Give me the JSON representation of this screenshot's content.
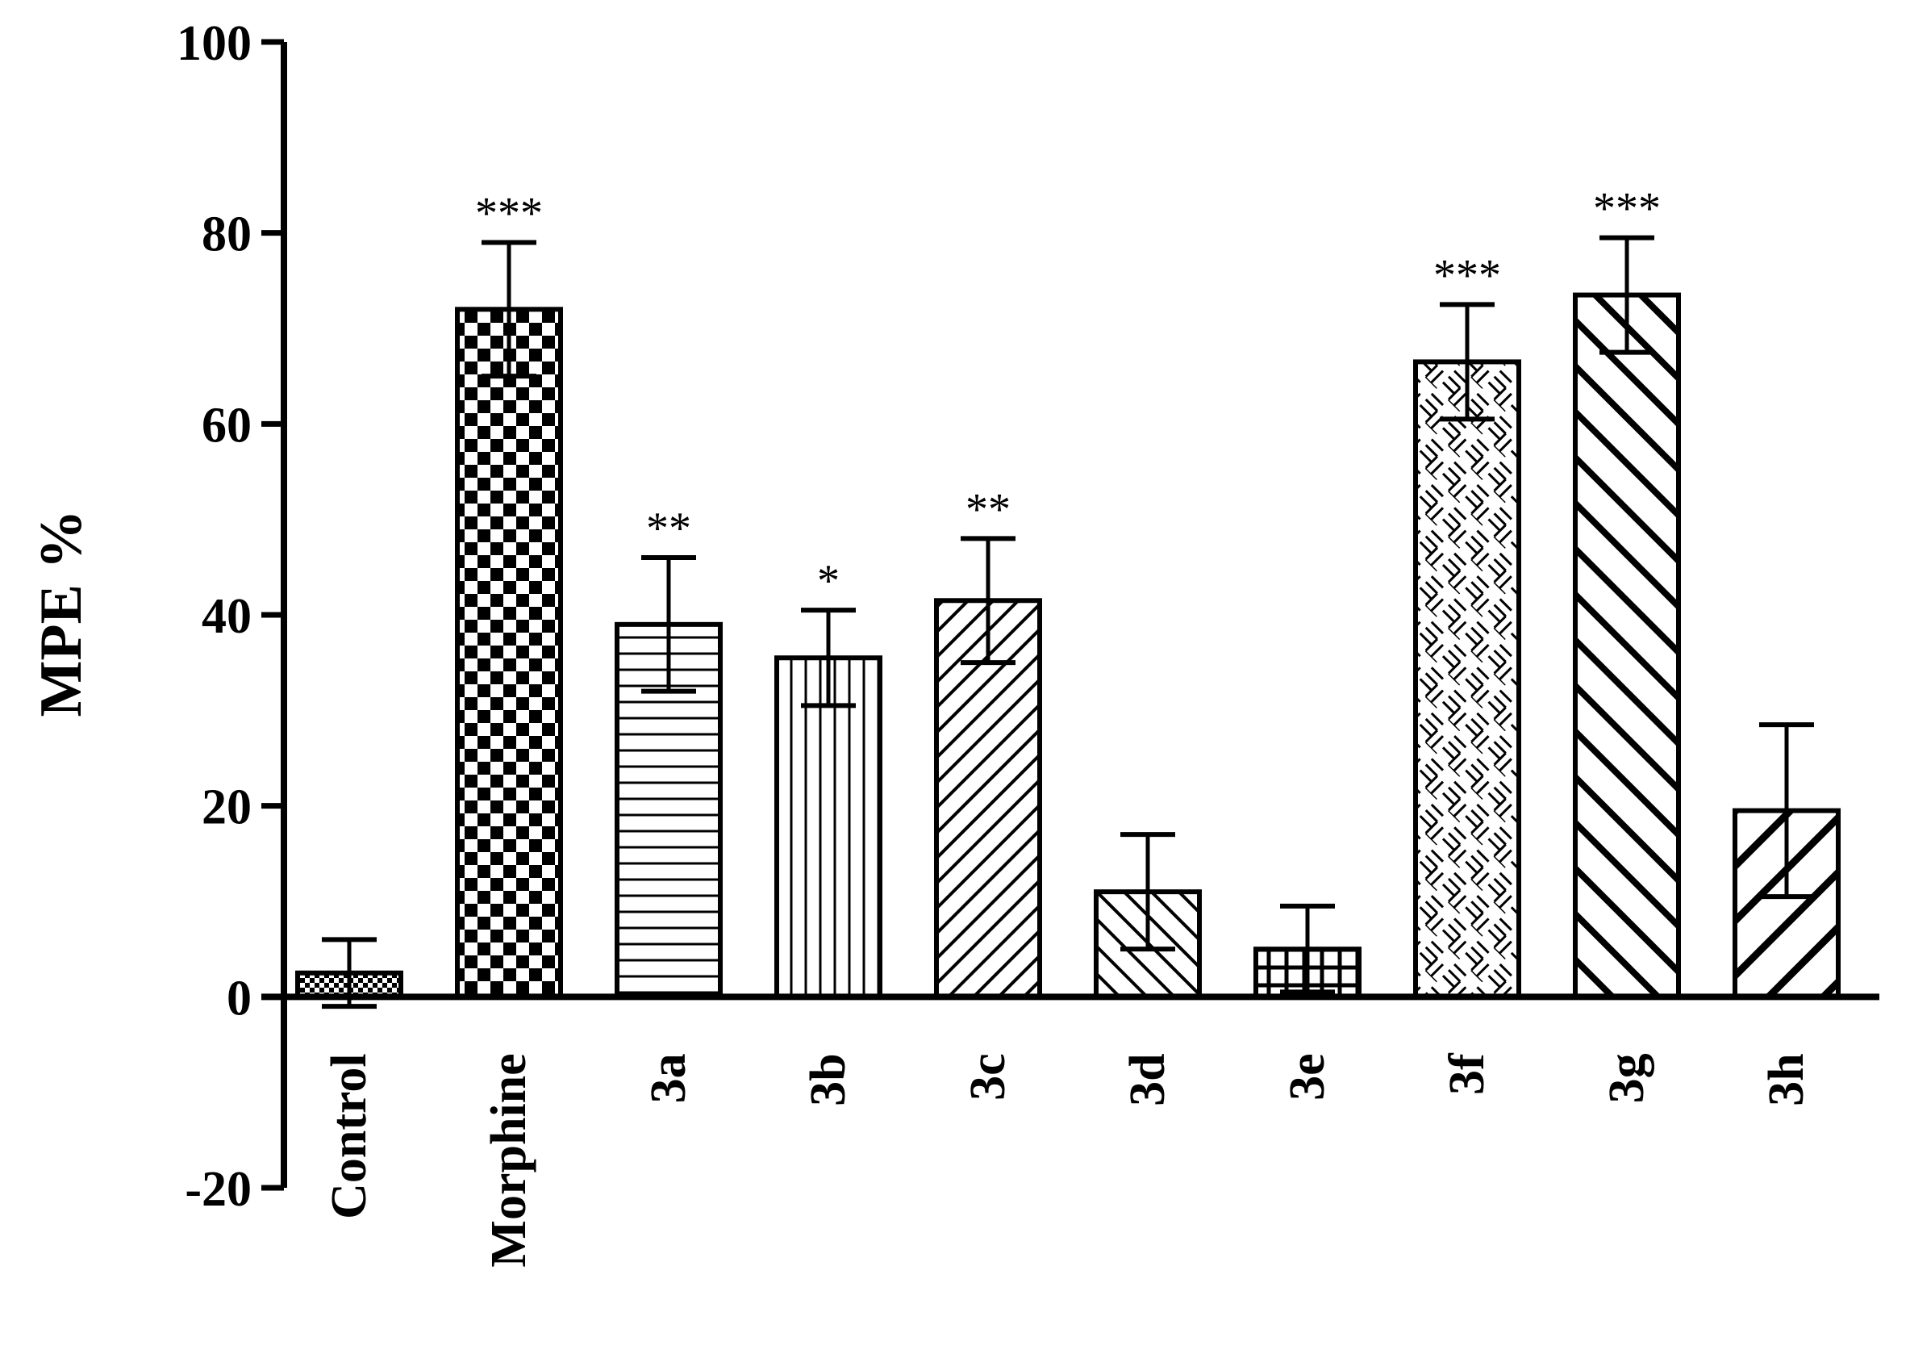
{
  "chart_data": {
    "type": "bar",
    "title": "",
    "xlabel": "",
    "ylabel": "MPE %",
    "ylim": [
      -20,
      100
    ],
    "yticks": [
      -20,
      0,
      20,
      40,
      60,
      80,
      100
    ],
    "grid": false,
    "legend": "none",
    "categories": [
      "Control",
      "Morphine",
      "3a",
      "3b",
      "3c",
      "3d",
      "3e",
      "3f",
      "3g",
      "3h"
    ],
    "values": [
      2.5,
      72,
      39,
      35.5,
      41.5,
      11,
      5,
      66.5,
      73.5,
      19.5
    ],
    "errors": [
      3.5,
      7,
      7,
      5,
      6.5,
      6,
      4.5,
      6,
      6,
      9
    ],
    "significance": [
      "",
      "***",
      "**",
      "*",
      "**",
      "",
      "",
      "***",
      "***",
      ""
    ],
    "patterns": [
      "dotted-fine",
      "checker",
      "horizontal",
      "vertical",
      "diag-up-fine",
      "diag-down",
      "grid",
      "basket",
      "diag-down-wide",
      "diag-up-wide"
    ],
    "colors": {
      "bar_stroke": "#000000",
      "pattern": "#000000",
      "background": "#ffffff"
    }
  }
}
